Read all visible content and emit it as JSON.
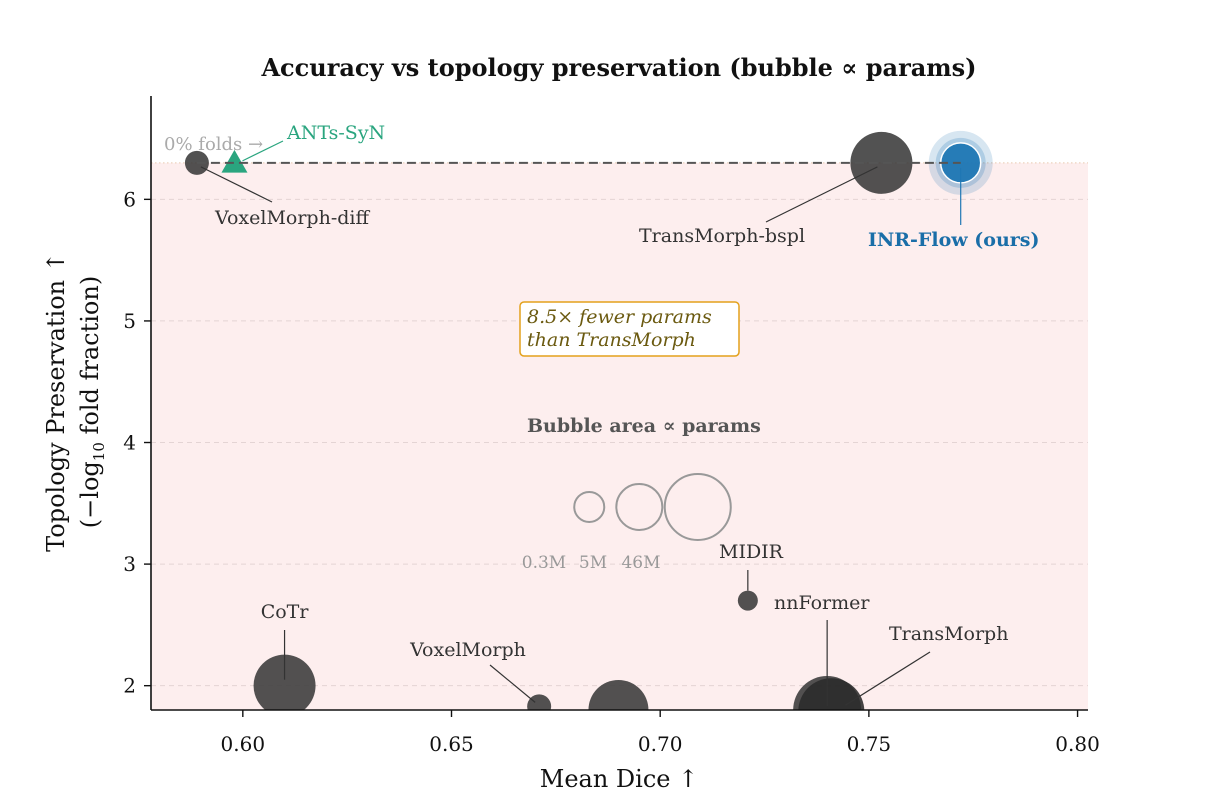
{
  "chart_data": {
    "type": "scatter",
    "title": "Accuracy vs topology preservation (bubble ∝ params)",
    "xlabel": "Mean Dice",
    "xlabel_arrow": "↑",
    "ylabel_line1": "Topology Preservation",
    "ylabel_arrow": "↑",
    "ylabel_line2_prefix": "(−log",
    "ylabel_line2_sub": "10",
    "ylabel_line2_suffix": " fold fraction)",
    "xlim": [
      0.578,
      0.8025
    ],
    "ylim": [
      1.8,
      6.85
    ],
    "xticks": [
      0.6,
      0.65,
      0.7,
      0.75,
      0.8
    ],
    "xtick_labels": [
      "0.60",
      "0.65",
      "0.70",
      "0.75",
      "0.80"
    ],
    "yticks": [
      2,
      3,
      4,
      5,
      6
    ],
    "ytick_labels": [
      "2",
      "3",
      "4",
      "5",
      "6"
    ],
    "grid": "horizontal dashed",
    "zero_fold_level": 6.3,
    "zero_fold_label": "0% folds →",
    "shaded_region_color": "#fdeeee",
    "points": [
      {
        "label": "VoxelMorph-diff",
        "x": 0.589,
        "y": 6.3,
        "size": 12,
        "color": "#3a3a3a",
        "marker": "circle"
      },
      {
        "label": "ANTs-SyN",
        "x": 0.598,
        "y": 6.3,
        "size": 0,
        "color": "#2aa57f",
        "marker": "triangle"
      },
      {
        "label": "TransMorph-bspl",
        "x": 0.753,
        "y": 6.3,
        "size": 31,
        "color": "#3a3a3a",
        "marker": "circle"
      },
      {
        "label": "INR-Flow (ours)",
        "x": 0.772,
        "y": 6.3,
        "size": 20,
        "color": "#1f77b4",
        "marker": "circle",
        "highlight": true
      },
      {
        "label": "MIDIR",
        "x": 0.721,
        "y": 2.7,
        "size": 10,
        "color": "#3a3a3a",
        "marker": "circle"
      },
      {
        "label": "nnFormer",
        "x": 0.74,
        "y": 1.8,
        "size": 34,
        "color": "#3a3a3a",
        "marker": "circle"
      },
      {
        "label": "TransMorph",
        "x": 0.741,
        "y": 1.79,
        "size": 33,
        "color": "#2a2a2a",
        "marker": "circle"
      },
      {
        "label": "CoTr",
        "x": 0.61,
        "y": 2.0,
        "size": 31,
        "color": "#3a3a3a",
        "marker": "circle"
      },
      {
        "label": "VoxelMorph",
        "x": 0.671,
        "y": 1.83,
        "size": 12,
        "color": "#3a3a3a",
        "marker": "circle"
      },
      {
        "label": "",
        "x": 0.69,
        "y": 1.8,
        "size": 30,
        "color": "#3a3a3a",
        "marker": "circle"
      }
    ],
    "callout": {
      "line1": "8.5× fewer params",
      "line2": "than TransMorph",
      "border_color": "#e3a11c",
      "text_color": "#6b5a10"
    },
    "legend": {
      "title": "Bubble area ∝ params",
      "sizes": [
        {
          "label": "0.3M",
          "x": 0.683,
          "r": 15
        },
        {
          "label": "5M",
          "x": 0.695,
          "r": 23
        },
        {
          "label": "46M",
          "x": 0.709,
          "r": 33
        }
      ],
      "y": 3.47
    }
  }
}
